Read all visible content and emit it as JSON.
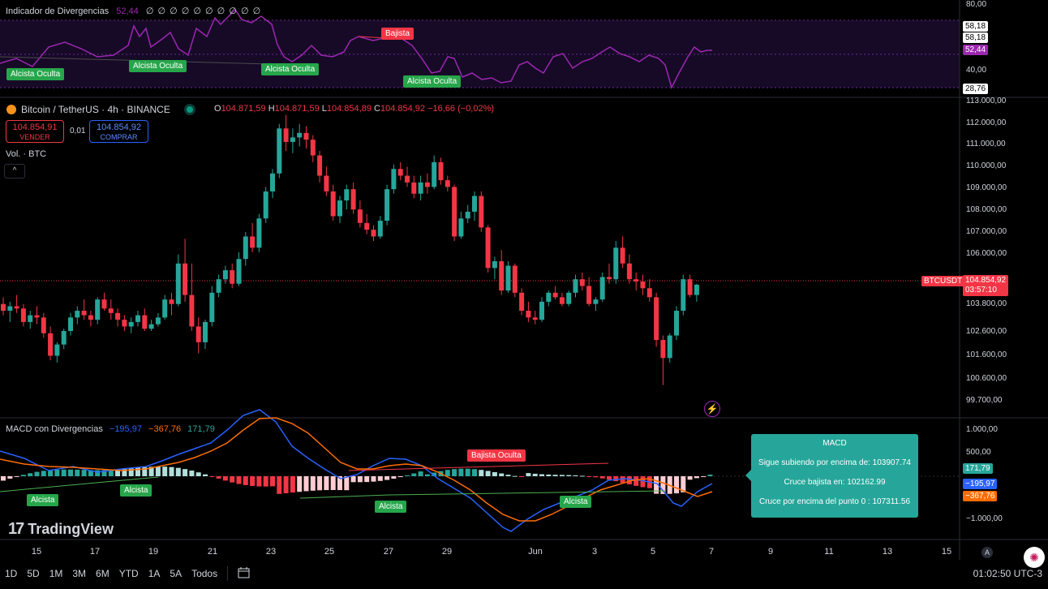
{
  "rsi": {
    "title": "Indicador de Divergencias",
    "value": "52,44",
    "zeros": "∅ ∅ ∅ ∅ ∅ ∅ ∅ ∅ ∅ ∅",
    "axis": [
      "80,00",
      "40,00"
    ],
    "tags": [
      "58,18",
      "58,18",
      "52,44",
      "28,76"
    ],
    "divergences": [
      "Alcista Oculta",
      "Alcista Oculta",
      "Alcista Oculta",
      "Alcista Oculta",
      "Bajista"
    ]
  },
  "symbol": {
    "name": "Bitcoin / TetherUS · 4h · BINANCE",
    "o_label": "O",
    "o": "104.871,59",
    "h_label": "H",
    "h": "104.871,59",
    "l_label": "L",
    "l": "104.854,89",
    "c_label": "C",
    "c": "104.854,92",
    "change": "−16,66 (−0,02%)"
  },
  "trade": {
    "sell_price": "104.854,91",
    "sell_label": "VENDER",
    "spread": "0,01",
    "buy_price": "104.854,92",
    "buy_label": "COMPRAR"
  },
  "volume_label": "Vol. · BTC",
  "collapse_icon": "^",
  "price_axis": [
    "113.000,00",
    "112.000,00",
    "111.000,00",
    "110.000,00",
    "109.000,00",
    "108.000,00",
    "107.000,00",
    "106.000,00",
    "103.800,00",
    "102.600,00",
    "101.600,00",
    "100.600,00",
    "99.700,00"
  ],
  "last_price": {
    "symbol": "BTCUSDT",
    "price": "104.854,92",
    "countdown": "03:57:10"
  },
  "macd": {
    "title": "MACD con Divergencias",
    "v1": "−195,97",
    "v2": "−367,76",
    "v3": "171,79",
    "axis": [
      "1.000,00",
      "500,00",
      "−1.000,00"
    ],
    "tags": [
      "171,79",
      "−195,97",
      "−367,76"
    ],
    "divergences": [
      "Alcista",
      "Alcista",
      "Alcista",
      "Alcista",
      "Bajista Oculta"
    ],
    "card": {
      "title": "MACD",
      "line1": "Sigue subiendo por encima de: 103907.74",
      "line2": "Cruce bajista en: 102162.99",
      "line3": "Cruce por encima del punto 0 : 107311.56"
    }
  },
  "x_axis": [
    "15",
    "17",
    "19",
    "21",
    "23",
    "25",
    "27",
    "29",
    "Jun",
    "3",
    "5",
    "7",
    "9",
    "11",
    "13",
    "15"
  ],
  "timeframes": [
    "1D",
    "5D",
    "1M",
    "3M",
    "6M",
    "YTD",
    "1A",
    "5A",
    "Todos"
  ],
  "clock": "01:02:50 UTC-3",
  "brand": "TradingView",
  "axis_mode": "A",
  "colors": {
    "up": "#26a69a",
    "down": "#f23645",
    "rsi": "#9c27b0",
    "macd": "#2962ff",
    "signal": "#ff6d00"
  },
  "chart_data": {
    "type": "candlestick",
    "ohlc": [
      [
        104000,
        104300,
        103500,
        103700
      ],
      [
        103700,
        104100,
        103200,
        103900
      ],
      [
        103900,
        104400,
        103600,
        103800
      ],
      [
        103800,
        104000,
        103000,
        103200
      ],
      [
        103200,
        103700,
        102900,
        103500
      ],
      [
        103500,
        103900,
        103100,
        103400
      ],
      [
        103400,
        103600,
        102500,
        102700
      ],
      [
        102700,
        103000,
        101500,
        101700
      ],
      [
        101700,
        102300,
        101400,
        102200
      ],
      [
        102200,
        102900,
        102000,
        102800
      ],
      [
        102800,
        103600,
        102600,
        103400
      ],
      [
        103400,
        103900,
        103100,
        103700
      ],
      [
        103700,
        104200,
        103300,
        103500
      ],
      [
        103500,
        103700,
        103000,
        103300
      ],
      [
        103300,
        104300,
        103100,
        104200
      ],
      [
        104200,
        104500,
        103700,
        103800
      ],
      [
        103800,
        104200,
        103300,
        103600
      ],
      [
        103600,
        103800,
        103000,
        103300
      ],
      [
        103300,
        103500,
        102800,
        103000
      ],
      [
        103000,
        103400,
        102700,
        103200
      ],
      [
        103200,
        103700,
        103000,
        103500
      ],
      [
        103500,
        103800,
        102800,
        102900
      ],
      [
        102900,
        103300,
        102800,
        103100
      ],
      [
        103100,
        103600,
        103000,
        103400
      ],
      [
        103400,
        104400,
        103300,
        104200
      ],
      [
        104200,
        104500,
        103500,
        104000
      ],
      [
        104000,
        106200,
        103900,
        105800
      ],
      [
        105800,
        106900,
        104100,
        104400
      ],
      [
        104400,
        105800,
        102800,
        103000
      ],
      [
        103000,
        103400,
        101800,
        102300
      ],
      [
        102300,
        103300,
        102000,
        103200
      ],
      [
        103200,
        104800,
        103000,
        104500
      ],
      [
        104500,
        105300,
        104300,
        105100
      ],
      [
        105100,
        105700,
        104900,
        105500
      ],
      [
        105500,
        105800,
        104700,
        104900
      ],
      [
        104900,
        106300,
        104800,
        106000
      ],
      [
        106000,
        107200,
        105700,
        107000
      ],
      [
        107000,
        107600,
        106300,
        106500
      ],
      [
        106500,
        108000,
        106300,
        107800
      ],
      [
        107800,
        109200,
        107600,
        109000
      ],
      [
        109000,
        110000,
        108700,
        109800
      ],
      [
        109800,
        112000,
        109600,
        111800
      ],
      [
        111800,
        112400,
        110800,
        111200
      ],
      [
        111200,
        111800,
        110700,
        111400
      ],
      [
        111400,
        112000,
        111000,
        111600
      ],
      [
        111600,
        111900,
        110900,
        111300
      ],
      [
        111300,
        111500,
        110300,
        110600
      ],
      [
        110600,
        110800,
        109400,
        109700
      ],
      [
        109700,
        110100,
        108800,
        109000
      ],
      [
        109000,
        109300,
        107700,
        107900
      ],
      [
        107900,
        108800,
        107600,
        108600
      ],
      [
        108600,
        109300,
        108200,
        109100
      ],
      [
        109100,
        109400,
        108000,
        108200
      ],
      [
        108200,
        108600,
        107400,
        107600
      ],
      [
        107600,
        108000,
        107100,
        107300
      ],
      [
        107300,
        107500,
        106800,
        107000
      ],
      [
        107000,
        107900,
        106900,
        107700
      ],
      [
        107700,
        109300,
        107500,
        109100
      ],
      [
        109100,
        110200,
        108900,
        110000
      ],
      [
        110000,
        110300,
        109500,
        109700
      ],
      [
        109700,
        110100,
        109200,
        109400
      ],
      [
        109400,
        109700,
        108700,
        108900
      ],
      [
        108900,
        109700,
        108600,
        109400
      ],
      [
        109400,
        109800,
        108900,
        109200
      ],
      [
        109200,
        110600,
        109100,
        110300
      ],
      [
        110300,
        110500,
        109300,
        109500
      ],
      [
        109500,
        109700,
        109000,
        109200
      ],
      [
        109200,
        109300,
        106800,
        107000
      ],
      [
        107000,
        108100,
        106900,
        107800
      ],
      [
        107800,
        108400,
        107600,
        108100
      ],
      [
        108100,
        109000,
        107700,
        108800
      ],
      [
        108800,
        109000,
        107200,
        107400
      ],
      [
        107400,
        107500,
        105400,
        105600
      ],
      [
        105600,
        106100,
        105100,
        105900
      ],
      [
        105900,
        106400,
        104400,
        104600
      ],
      [
        104600,
        105900,
        104500,
        105700
      ],
      [
        105700,
        105800,
        104300,
        104500
      ],
      [
        104500,
        104700,
        103500,
        103700
      ],
      [
        103700,
        104100,
        103200,
        103400
      ],
      [
        103400,
        103700,
        103100,
        103300
      ],
      [
        103300,
        104300,
        103200,
        104100
      ],
      [
        104100,
        104600,
        103900,
        104500
      ],
      [
        104500,
        104800,
        104200,
        104300
      ],
      [
        104300,
        104500,
        103900,
        104000
      ],
      [
        104000,
        104600,
        103900,
        104500
      ],
      [
        104500,
        105300,
        104300,
        105100
      ],
      [
        105100,
        105400,
        104600,
        104800
      ],
      [
        104800,
        105200,
        103900,
        104000
      ],
      [
        104000,
        104300,
        103700,
        104200
      ],
      [
        104200,
        105400,
        104100,
        105200
      ],
      [
        105200,
        105800,
        104900,
        105100
      ],
      [
        105100,
        106800,
        104900,
        106500
      ],
      [
        106500,
        107000,
        105600,
        105800
      ],
      [
        105800,
        106200,
        104900,
        105100
      ],
      [
        105100,
        105400,
        104600,
        105000
      ],
      [
        105000,
        105300,
        104400,
        104700
      ],
      [
        104700,
        105100,
        104100,
        104300
      ],
      [
        104300,
        104500,
        102100,
        102400
      ],
      [
        102400,
        102600,
        100400,
        101600
      ],
      [
        101600,
        102700,
        101400,
        102600
      ],
      [
        102600,
        103900,
        102400,
        103700
      ],
      [
        103700,
        105300,
        103500,
        105100
      ],
      [
        105100,
        105300,
        104300,
        104400
      ],
      [
        104400,
        104900,
        104100,
        104855
      ]
    ],
    "ylim": [
      99700,
      113000
    ]
  }
}
